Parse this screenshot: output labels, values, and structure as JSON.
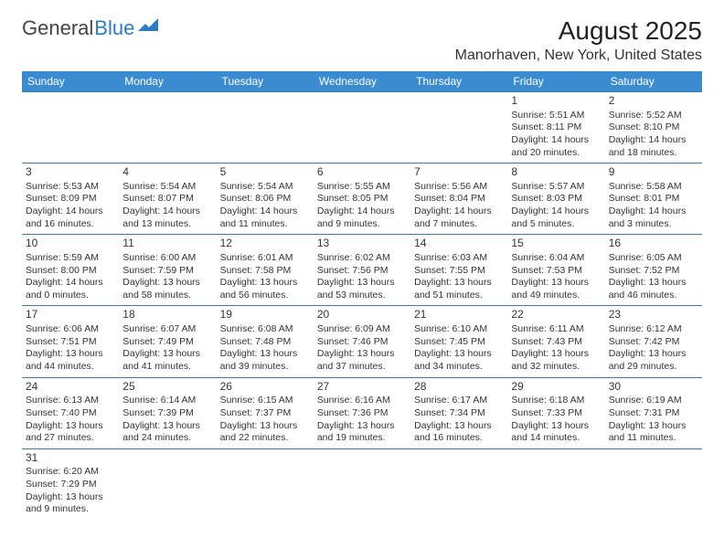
{
  "logo": {
    "general": "General",
    "blue": "Blue"
  },
  "month_title": "August 2025",
  "location": "Manorhaven, New York, United States",
  "header_bg": "#3b8bd1",
  "border_color": "#3b7ab5",
  "day_headers": [
    "Sunday",
    "Monday",
    "Tuesday",
    "Wednesday",
    "Thursday",
    "Friday",
    "Saturday"
  ],
  "weeks": [
    [
      null,
      null,
      null,
      null,
      null,
      {
        "n": "1",
        "sr": "Sunrise: 5:51 AM",
        "ss": "Sunset: 8:11 PM",
        "d1": "Daylight: 14 hours",
        "d2": "and 20 minutes."
      },
      {
        "n": "2",
        "sr": "Sunrise: 5:52 AM",
        "ss": "Sunset: 8:10 PM",
        "d1": "Daylight: 14 hours",
        "d2": "and 18 minutes."
      }
    ],
    [
      {
        "n": "3",
        "sr": "Sunrise: 5:53 AM",
        "ss": "Sunset: 8:09 PM",
        "d1": "Daylight: 14 hours",
        "d2": "and 16 minutes."
      },
      {
        "n": "4",
        "sr": "Sunrise: 5:54 AM",
        "ss": "Sunset: 8:07 PM",
        "d1": "Daylight: 14 hours",
        "d2": "and 13 minutes."
      },
      {
        "n": "5",
        "sr": "Sunrise: 5:54 AM",
        "ss": "Sunset: 8:06 PM",
        "d1": "Daylight: 14 hours",
        "d2": "and 11 minutes."
      },
      {
        "n": "6",
        "sr": "Sunrise: 5:55 AM",
        "ss": "Sunset: 8:05 PM",
        "d1": "Daylight: 14 hours",
        "d2": "and 9 minutes."
      },
      {
        "n": "7",
        "sr": "Sunrise: 5:56 AM",
        "ss": "Sunset: 8:04 PM",
        "d1": "Daylight: 14 hours",
        "d2": "and 7 minutes."
      },
      {
        "n": "8",
        "sr": "Sunrise: 5:57 AM",
        "ss": "Sunset: 8:03 PM",
        "d1": "Daylight: 14 hours",
        "d2": "and 5 minutes."
      },
      {
        "n": "9",
        "sr": "Sunrise: 5:58 AM",
        "ss": "Sunset: 8:01 PM",
        "d1": "Daylight: 14 hours",
        "d2": "and 3 minutes."
      }
    ],
    [
      {
        "n": "10",
        "sr": "Sunrise: 5:59 AM",
        "ss": "Sunset: 8:00 PM",
        "d1": "Daylight: 14 hours",
        "d2": "and 0 minutes."
      },
      {
        "n": "11",
        "sr": "Sunrise: 6:00 AM",
        "ss": "Sunset: 7:59 PM",
        "d1": "Daylight: 13 hours",
        "d2": "and 58 minutes."
      },
      {
        "n": "12",
        "sr": "Sunrise: 6:01 AM",
        "ss": "Sunset: 7:58 PM",
        "d1": "Daylight: 13 hours",
        "d2": "and 56 minutes."
      },
      {
        "n": "13",
        "sr": "Sunrise: 6:02 AM",
        "ss": "Sunset: 7:56 PM",
        "d1": "Daylight: 13 hours",
        "d2": "and 53 minutes."
      },
      {
        "n": "14",
        "sr": "Sunrise: 6:03 AM",
        "ss": "Sunset: 7:55 PM",
        "d1": "Daylight: 13 hours",
        "d2": "and 51 minutes."
      },
      {
        "n": "15",
        "sr": "Sunrise: 6:04 AM",
        "ss": "Sunset: 7:53 PM",
        "d1": "Daylight: 13 hours",
        "d2": "and 49 minutes."
      },
      {
        "n": "16",
        "sr": "Sunrise: 6:05 AM",
        "ss": "Sunset: 7:52 PM",
        "d1": "Daylight: 13 hours",
        "d2": "and 46 minutes."
      }
    ],
    [
      {
        "n": "17",
        "sr": "Sunrise: 6:06 AM",
        "ss": "Sunset: 7:51 PM",
        "d1": "Daylight: 13 hours",
        "d2": "and 44 minutes."
      },
      {
        "n": "18",
        "sr": "Sunrise: 6:07 AM",
        "ss": "Sunset: 7:49 PM",
        "d1": "Daylight: 13 hours",
        "d2": "and 41 minutes."
      },
      {
        "n": "19",
        "sr": "Sunrise: 6:08 AM",
        "ss": "Sunset: 7:48 PM",
        "d1": "Daylight: 13 hours",
        "d2": "and 39 minutes."
      },
      {
        "n": "20",
        "sr": "Sunrise: 6:09 AM",
        "ss": "Sunset: 7:46 PM",
        "d1": "Daylight: 13 hours",
        "d2": "and 37 minutes."
      },
      {
        "n": "21",
        "sr": "Sunrise: 6:10 AM",
        "ss": "Sunset: 7:45 PM",
        "d1": "Daylight: 13 hours",
        "d2": "and 34 minutes."
      },
      {
        "n": "22",
        "sr": "Sunrise: 6:11 AM",
        "ss": "Sunset: 7:43 PM",
        "d1": "Daylight: 13 hours",
        "d2": "and 32 minutes."
      },
      {
        "n": "23",
        "sr": "Sunrise: 6:12 AM",
        "ss": "Sunset: 7:42 PM",
        "d1": "Daylight: 13 hours",
        "d2": "and 29 minutes."
      }
    ],
    [
      {
        "n": "24",
        "sr": "Sunrise: 6:13 AM",
        "ss": "Sunset: 7:40 PM",
        "d1": "Daylight: 13 hours",
        "d2": "and 27 minutes."
      },
      {
        "n": "25",
        "sr": "Sunrise: 6:14 AM",
        "ss": "Sunset: 7:39 PM",
        "d1": "Daylight: 13 hours",
        "d2": "and 24 minutes."
      },
      {
        "n": "26",
        "sr": "Sunrise: 6:15 AM",
        "ss": "Sunset: 7:37 PM",
        "d1": "Daylight: 13 hours",
        "d2": "and 22 minutes."
      },
      {
        "n": "27",
        "sr": "Sunrise: 6:16 AM",
        "ss": "Sunset: 7:36 PM",
        "d1": "Daylight: 13 hours",
        "d2": "and 19 minutes."
      },
      {
        "n": "28",
        "sr": "Sunrise: 6:17 AM",
        "ss": "Sunset: 7:34 PM",
        "d1": "Daylight: 13 hours",
        "d2": "and 16 minutes."
      },
      {
        "n": "29",
        "sr": "Sunrise: 6:18 AM",
        "ss": "Sunset: 7:33 PM",
        "d1": "Daylight: 13 hours",
        "d2": "and 14 minutes."
      },
      {
        "n": "30",
        "sr": "Sunrise: 6:19 AM",
        "ss": "Sunset: 7:31 PM",
        "d1": "Daylight: 13 hours",
        "d2": "and 11 minutes."
      }
    ],
    [
      {
        "n": "31",
        "sr": "Sunrise: 6:20 AM",
        "ss": "Sunset: 7:29 PM",
        "d1": "Daylight: 13 hours",
        "d2": "and 9 minutes."
      },
      null,
      null,
      null,
      null,
      null,
      null
    ]
  ]
}
